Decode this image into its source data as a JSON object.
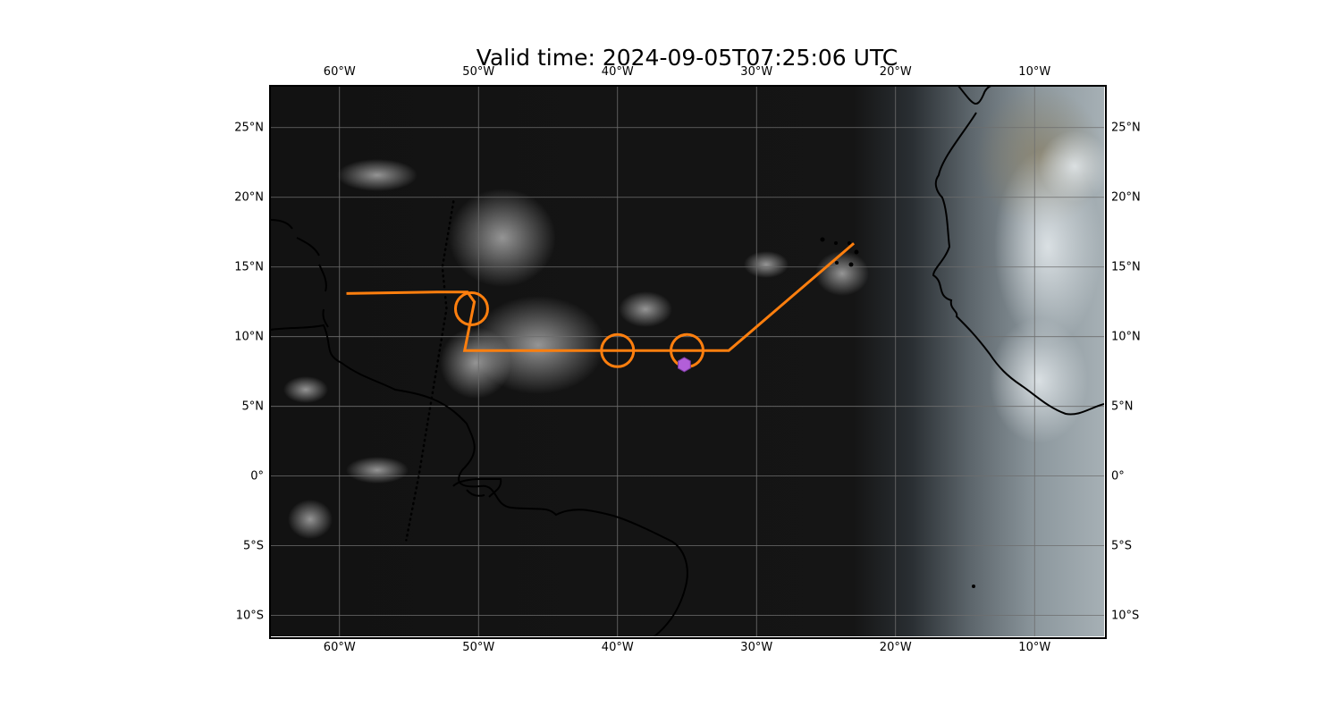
{
  "title": "Valid time: 2024-09-05T07:25:06 UTC",
  "map": {
    "extent": {
      "lon": [
        -65,
        -5
      ],
      "lat": [
        -11.5,
        28
      ]
    },
    "lon_ticks": [
      {
        "value": -60,
        "label": "60°W"
      },
      {
        "value": -50,
        "label": "50°W"
      },
      {
        "value": -40,
        "label": "40°W"
      },
      {
        "value": -30,
        "label": "30°W"
      },
      {
        "value": -20,
        "label": "20°W"
      },
      {
        "value": -10,
        "label": "10°W"
      }
    ],
    "lat_ticks": [
      {
        "value": 25,
        "label": "25°N"
      },
      {
        "value": 20,
        "label": "20°N"
      },
      {
        "value": 15,
        "label": "15°N"
      },
      {
        "value": 10,
        "label": "10°N"
      },
      {
        "value": 5,
        "label": "5°N"
      },
      {
        "value": 0,
        "label": "0°"
      },
      {
        "value": -5,
        "label": "5°S"
      },
      {
        "value": -10,
        "label": "10°S"
      }
    ],
    "gridlines": true,
    "colors": {
      "night": "#121212",
      "day": "#9aa5ab",
      "track": "#ff7f0e",
      "marker": "#b25fd8",
      "coast": "#000000",
      "grid": "#6e6e6e"
    },
    "flight_track": [
      [
        -59.5,
        13.1
      ],
      [
        -53,
        13.2
      ],
      [
        -50.8,
        13.2
      ],
      [
        -50.3,
        12.5
      ],
      [
        -51,
        9
      ],
      [
        -32,
        9
      ],
      [
        -23,
        16.7
      ]
    ],
    "circles": [
      {
        "lon": -50.5,
        "lat": 12
      },
      {
        "lon": -40,
        "lat": 9
      },
      {
        "lon": -35,
        "lat": 9
      }
    ],
    "marker": {
      "lon": -35.2,
      "lat": 8.0,
      "shape": "hexagon"
    },
    "boundary_dotted": [
      [
        -51.8,
        19.7
      ],
      [
        -52.6,
        15
      ],
      [
        -52.3,
        12
      ],
      [
        -53.3,
        6
      ],
      [
        -54.3,
        0
      ],
      [
        -55.2,
        -4.6
      ]
    ]
  }
}
